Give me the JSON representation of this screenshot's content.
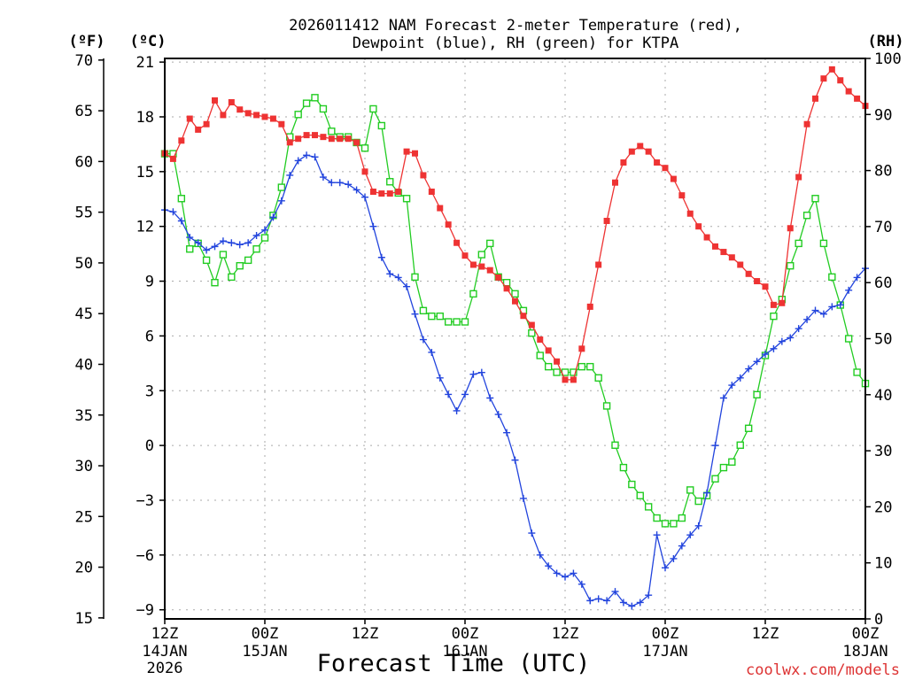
{
  "chart_data": {
    "type": "line",
    "title_line1": "2026011412 NAM Forecast 2-meter Temperature (red),",
    "title_line2": "Dewpoint (blue), RH (green) for KTPA",
    "xlabel": "Forecast Time (UTC)",
    "credit": "coolwx.com/models",
    "left_unit_f": "(ºF)",
    "left_unit_c": "(ºC)",
    "right_unit": "(RH)",
    "x_range_hours": [
      0,
      84
    ],
    "x_tick_hours": [
      0,
      12,
      24,
      36,
      48,
      60,
      72,
      84
    ],
    "x_ticks": [
      {
        "hour": 0,
        "time": "12Z",
        "date": "14JAN",
        "year": "2026"
      },
      {
        "hour": 12,
        "time": "00Z",
        "date": "15JAN",
        "year": ""
      },
      {
        "hour": 24,
        "time": "12Z",
        "date": "",
        "year": ""
      },
      {
        "hour": 36,
        "time": "00Z",
        "date": "16JAN",
        "year": ""
      },
      {
        "hour": 48,
        "time": "12Z",
        "date": "",
        "year": ""
      },
      {
        "hour": 60,
        "time": "00Z",
        "date": "17JAN",
        "year": ""
      },
      {
        "hour": 72,
        "time": "12Z",
        "date": "",
        "year": ""
      },
      {
        "hour": 84,
        "time": "00Z",
        "date": "18JAN",
        "year": ""
      }
    ],
    "ylim_c": [
      -9.5,
      21.2
    ],
    "yticks_c": [
      21,
      18,
      15,
      12,
      9,
      6,
      3,
      0,
      -3,
      -6,
      -9
    ],
    "yticks_c_labels": [
      "21",
      "18",
      "15",
      "12",
      "9",
      "6",
      "3",
      "0",
      "−3",
      "−6",
      "−9"
    ],
    "yticks_f": [
      70,
      65,
      60,
      55,
      50,
      45,
      40,
      35,
      30,
      25,
      20,
      15
    ],
    "yticks_f_labels": [
      "70",
      "65",
      "60",
      "55",
      "50",
      "45",
      "40",
      "35",
      "30",
      "25",
      "20",
      "15"
    ],
    "ylim_rh": [
      0,
      100
    ],
    "yticks_rh": [
      100,
      90,
      80,
      70,
      60,
      50,
      40,
      30,
      20,
      10,
      0
    ],
    "yticks_rh_labels": [
      "100",
      "90",
      "80",
      "70",
      "60",
      "50",
      "40",
      "30",
      "20",
      "10",
      "0"
    ],
    "hours": [
      0,
      1,
      2,
      3,
      4,
      5,
      6,
      7,
      8,
      9,
      10,
      11,
      12,
      13,
      14,
      15,
      16,
      17,
      18,
      19,
      20,
      21,
      22,
      23,
      24,
      25,
      26,
      27,
      28,
      29,
      30,
      31,
      32,
      33,
      34,
      35,
      36,
      37,
      38,
      39,
      40,
      41,
      42,
      43,
      44,
      45,
      46,
      47,
      48,
      49,
      50,
      51,
      52,
      53,
      54,
      55,
      56,
      57,
      58,
      59,
      60,
      61,
      62,
      63,
      64,
      65,
      66,
      67,
      68,
      69,
      70,
      71,
      72,
      73,
      74,
      75,
      76,
      77,
      78,
      79,
      80,
      81,
      82,
      83,
      84
    ],
    "series": [
      {
        "name": "Temperature (°C)",
        "axis": "celsius",
        "color": "#ee3333",
        "marker": "filled-square",
        "values": [
          16.0,
          15.7,
          16.7,
          17.9,
          17.3,
          17.6,
          18.9,
          18.1,
          18.8,
          18.4,
          18.2,
          18.1,
          18.0,
          17.9,
          17.6,
          16.6,
          16.8,
          17.0,
          17.0,
          16.9,
          16.8,
          16.8,
          16.8,
          16.6,
          15.0,
          13.9,
          13.8,
          13.8,
          13.9,
          16.1,
          16.0,
          14.8,
          13.9,
          13.0,
          12.1,
          11.1,
          10.4,
          9.9,
          9.8,
          9.6,
          9.2,
          8.6,
          7.9,
          7.1,
          6.6,
          5.8,
          5.2,
          4.6,
          3.6,
          3.6,
          5.3,
          7.6,
          9.9,
          12.3,
          14.4,
          15.5,
          16.1,
          16.4,
          16.1,
          15.5,
          15.2,
          14.6,
          13.7,
          12.7,
          12.0,
          11.4,
          10.9,
          10.6,
          10.3,
          9.9,
          9.4,
          9.0,
          8.7,
          7.7,
          7.8,
          11.9,
          14.7,
          17.6,
          19.0,
          20.1,
          20.6,
          20.0,
          19.4,
          19.0,
          18.6
        ]
      },
      {
        "name": "Dewpoint (°C)",
        "axis": "celsius",
        "color": "#2244dd",
        "marker": "plus",
        "values": [
          12.9,
          12.8,
          12.3,
          11.4,
          11.1,
          10.7,
          10.9,
          11.2,
          11.1,
          11.0,
          11.1,
          11.5,
          11.8,
          12.5,
          13.4,
          14.8,
          15.6,
          15.9,
          15.8,
          14.7,
          14.4,
          14.4,
          14.3,
          14.0,
          13.6,
          12.0,
          10.3,
          9.4,
          9.2,
          8.7,
          7.2,
          5.8,
          5.1,
          3.7,
          2.8,
          1.9,
          2.8,
          3.9,
          4.0,
          2.6,
          1.7,
          0.7,
          -0.8,
          -2.9,
          -4.8,
          -6.0,
          -6.6,
          -7.0,
          -7.2,
          -7.0,
          -7.6,
          -8.5,
          -8.4,
          -8.5,
          -8.0,
          -8.6,
          -8.8,
          -8.6,
          -8.2,
          -4.9,
          -6.7,
          -6.2,
          -5.5,
          -4.9,
          -4.4,
          -2.6,
          0.0,
          2.6,
          3.3,
          3.7,
          4.2,
          4.6,
          5.0,
          5.3,
          5.7,
          5.9,
          6.4,
          6.9,
          7.4,
          7.2,
          7.6,
          7.7,
          8.5,
          9.2,
          9.7
        ]
      },
      {
        "name": "RH (%)",
        "axis": "rh",
        "color": "#22cc22",
        "marker": "open-square",
        "values": [
          83,
          83,
          75,
          66,
          67,
          64,
          60,
          65,
          61,
          63,
          64,
          66,
          68,
          72,
          77,
          86,
          90,
          92,
          93,
          91,
          87,
          86,
          86,
          85,
          84,
          91,
          88,
          78,
          76,
          75,
          61,
          55,
          54,
          54,
          53,
          53,
          53,
          58,
          65,
          67,
          61,
          60,
          58,
          55,
          51,
          47,
          45,
          44,
          44,
          44,
          45,
          45,
          43,
          38,
          31,
          27,
          24,
          22,
          20,
          18,
          17,
          17,
          18,
          23,
          21,
          22,
          25,
          27,
          28,
          31,
          34,
          40,
          47,
          54,
          57,
          63,
          67,
          72,
          75,
          67,
          61,
          56,
          50,
          44,
          42
        ]
      }
    ]
  }
}
